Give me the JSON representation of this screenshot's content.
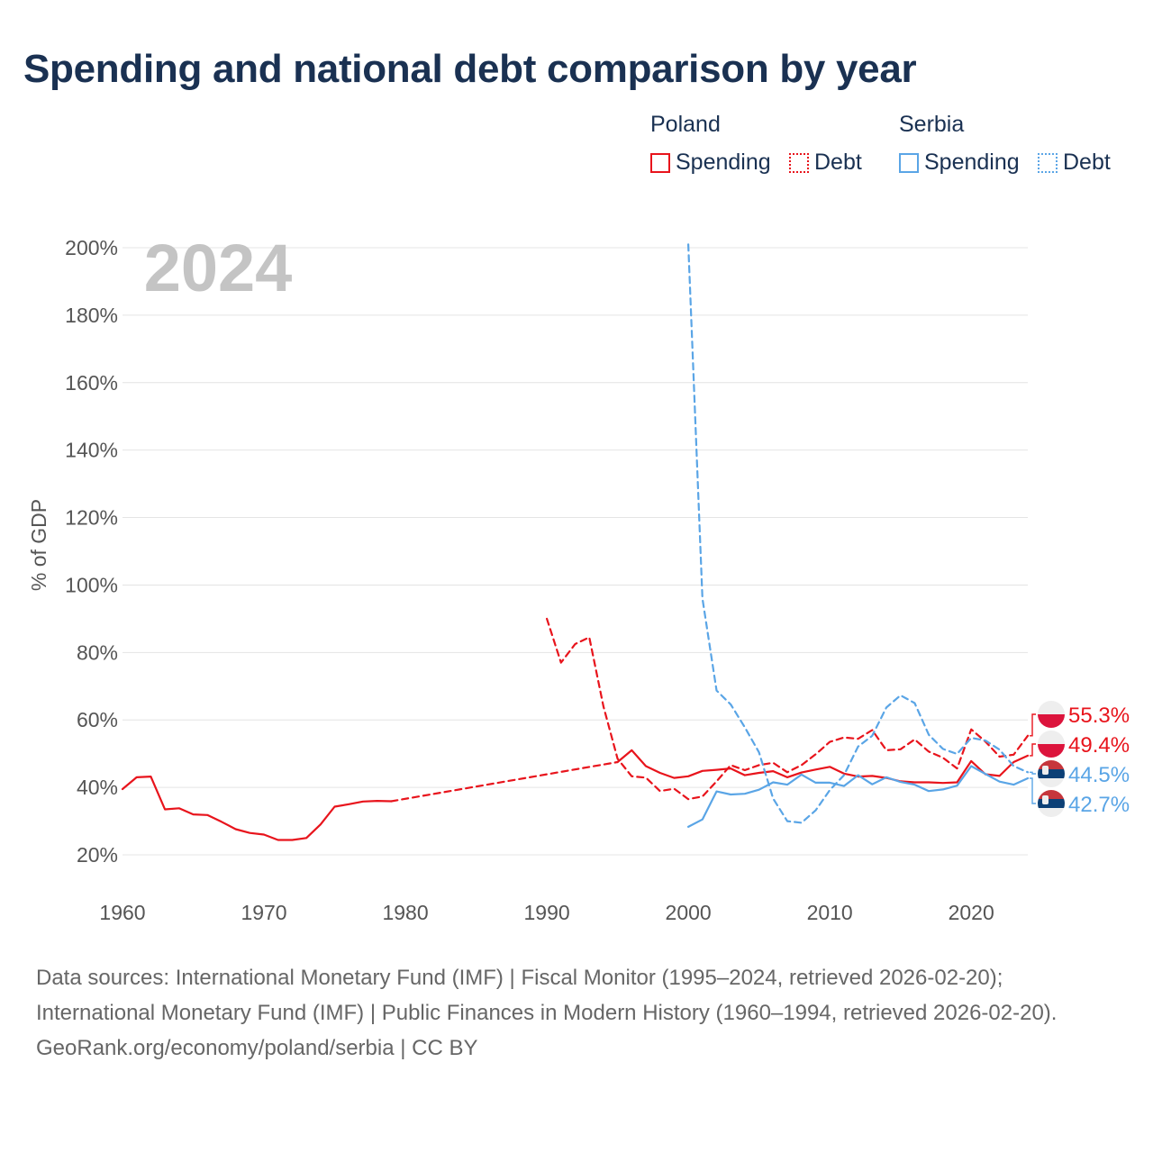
{
  "title": "Spending and national debt comparison by year",
  "legend": {
    "groups": [
      {
        "country": "Poland",
        "spending_label": "Spending",
        "debt_label": "Debt",
        "color": "#e8141c"
      },
      {
        "country": "Serbia",
        "spending_label": "Spending",
        "debt_label": "Debt",
        "color": "#5aa5e6"
      }
    ]
  },
  "footer": {
    "sources": "Data sources: International Monetary Fund (IMF) | Fiscal Monitor (1995–2024, retrieved 2026-02-20); International Monetary Fund (IMF) | Public Finances in Modern History (1960–1994, retrieved 2026-02-20).",
    "credit": "GeoRank.org/economy/poland/serbia | CC BY"
  },
  "chart_data": {
    "type": "line",
    "year_label": "2024",
    "ylabel": "% of GDP",
    "xlim": [
      1960,
      2024
    ],
    "ylim": [
      10,
      205
    ],
    "x_ticks": [
      1960,
      1970,
      1980,
      1990,
      2000,
      2010,
      2020
    ],
    "y_ticks": [
      20,
      40,
      60,
      80,
      100,
      120,
      140,
      160,
      180,
      200
    ],
    "y_tick_suffix": "%",
    "grid": true,
    "series": [
      {
        "name": "Poland Spending",
        "country": "Poland",
        "measure": "Spending",
        "color": "#e8141c",
        "segments": [
          {
            "style": "solid",
            "x": [
              1960,
              1961,
              1962,
              1963,
              1964,
              1965,
              1966,
              1967,
              1968,
              1969,
              1970,
              1971,
              1972,
              1973,
              1974,
              1975,
              1976,
              1977,
              1978,
              1979
            ],
            "y": [
              39.5,
              43,
              43.2,
              33.5,
              33.8,
              32,
              31.8,
              29.8,
              27.6,
              26.5,
              26,
              24.4,
              24.4,
              25,
              29,
              34.3,
              35,
              35.8,
              36,
              35.9
            ]
          },
          {
            "style": "dashed",
            "x": [
              1979,
              1995
            ],
            "y": [
              35.9,
              47.5
            ]
          },
          {
            "style": "solid",
            "x": [
              1995,
              1996,
              1997,
              1998,
              1999,
              2000,
              2001,
              2002,
              2003,
              2004,
              2005,
              2006,
              2007,
              2008,
              2009,
              2010,
              2011,
              2012,
              2013,
              2014,
              2015,
              2016,
              2017,
              2018,
              2019,
              2020,
              2021,
              2022,
              2023,
              2024
            ],
            "y": [
              47.5,
              51,
              46.3,
              44.3,
              42.8,
              43.3,
              44.9,
              45.2,
              45.6,
              43.6,
              44.3,
              44.8,
              43,
              44.4,
              45.3,
              46.1,
              44.1,
              43.2,
              43.4,
              42.8,
              41.8,
              41.5,
              41.5,
              41.3,
              41.5,
              47.8,
              43.9,
              43.4,
              47.5,
              49.4
            ]
          }
        ],
        "final_value": 49.4,
        "final_label": "49.4%"
      },
      {
        "name": "Poland Debt",
        "country": "Poland",
        "measure": "Debt",
        "color": "#e8141c",
        "segments": [
          {
            "style": "dashed",
            "x": [
              1990,
              1991,
              1992,
              1993,
              1994,
              1995,
              1996,
              1997,
              1998,
              1999,
              2000,
              2001,
              2002,
              2003,
              2004,
              2005,
              2006,
              2007,
              2008,
              2009,
              2010,
              2011,
              2012,
              2013,
              2014,
              2015,
              2016,
              2017,
              2018,
              2019,
              2020,
              2021,
              2022,
              2023,
              2024
            ],
            "y": [
              90,
              77,
              82.5,
              84.5,
              64,
              48.5,
              43.3,
              42.9,
              38.9,
              39.6,
              36.5,
              37.3,
              41.8,
              46.6,
              45.1,
              46.6,
              47.3,
              44.5,
              46.6,
              49.8,
              53.5,
              54.8,
              54.4,
              57,
              51,
              51.3,
              54.2,
              50.6,
              48.8,
              45.6,
              57.2,
              53.6,
              49.1,
              49.7,
              55.3
            ]
          }
        ],
        "final_value": 55.3,
        "final_label": "55.3%"
      },
      {
        "name": "Serbia Spending",
        "country": "Serbia",
        "measure": "Spending",
        "color": "#5aa5e6",
        "segments": [
          {
            "style": "solid",
            "x": [
              2000,
              2001,
              2002,
              2003,
              2004,
              2005,
              2006,
              2007,
              2008,
              2009,
              2010,
              2011,
              2012,
              2013,
              2014,
              2015,
              2016,
              2017,
              2018,
              2019,
              2020,
              2021,
              2022,
              2023,
              2024
            ],
            "y": [
              28.3,
              30.5,
              38.8,
              37.9,
              38.1,
              39.3,
              41.5,
              40.8,
              43.8,
              41.4,
              41.4,
              40.4,
              43.6,
              40.9,
              43,
              41.6,
              40.8,
              38.9,
              39.4,
              40.5,
              46.3,
              44,
              41.7,
              40.8,
              42.7
            ]
          }
        ],
        "final_value": 42.7,
        "final_label": "42.7%"
      },
      {
        "name": "Serbia Debt",
        "country": "Serbia",
        "measure": "Debt",
        "color": "#5aa5e6",
        "segments": [
          {
            "style": "dashed",
            "x": [
              2000,
              2001,
              2002,
              2003,
              2004,
              2005,
              2006,
              2007,
              2008,
              2009,
              2010,
              2011,
              2012,
              2013,
              2014,
              2015,
              2016,
              2017,
              2018,
              2019,
              2020,
              2021,
              2022,
              2023,
              2024
            ],
            "y": [
              201,
              96,
              68.7,
              64.6,
              57.8,
              50.4,
              36.7,
              30,
              29.5,
              33.2,
              39.2,
              43.6,
              52.1,
              55.3,
              63.7,
              67.3,
              65,
              55.6,
              51.4,
              49.9,
              54.7,
              53.9,
              51.2,
              46.3,
              44.5
            ]
          }
        ],
        "final_value": 44.5,
        "final_label": "44.5%"
      }
    ]
  }
}
